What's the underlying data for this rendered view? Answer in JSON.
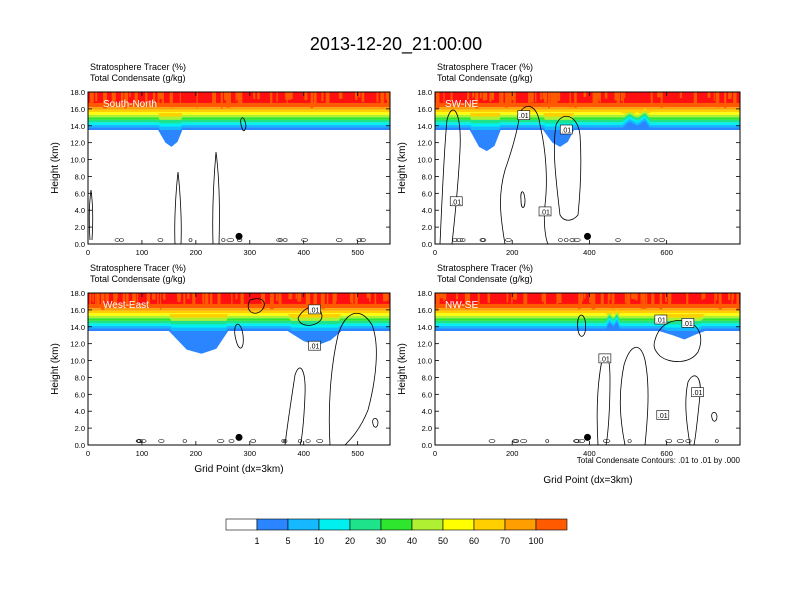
{
  "title": "2013-12-20_21:00:00",
  "colors": {
    "levels": [
      "#ffffff",
      "#2a85ff",
      "#16b8ff",
      "#00f0f0",
      "#1ee38a",
      "#2ee62e",
      "#b0f032",
      "#ffff00",
      "#ffcf00",
      "#ff9e00",
      "#ff5a00",
      "#ff0f0f"
    ],
    "contour": "#000000"
  },
  "colorbar": {
    "labels": [
      "1",
      "5",
      "10",
      "20",
      "30",
      "40",
      "50",
      "60",
      "70",
      "100"
    ]
  },
  "chart_data": [
    {
      "type": "heatmap",
      "panel_label": "South-North",
      "header_line1": "Stratosphere Tracer   (%)",
      "header_line2": "Total Condensate   (g/kg)",
      "ylabel": "Height (km)",
      "xlabel": "",
      "xlim": [
        0,
        560
      ],
      "ylim": [
        0,
        18
      ],
      "x_ticks": [
        0,
        100,
        200,
        300,
        400,
        500
      ],
      "y_ticks": [
        "0.0",
        "2.0",
        "4.0",
        "6.0",
        "8.0",
        "10.0",
        "12.0",
        "14.0",
        "16.0",
        "18.0"
      ],
      "marker_x": 280,
      "contour_labels": []
    },
    {
      "type": "heatmap",
      "panel_label": "SW-NE",
      "header_line1": "Stratosphere Tracer   (%)",
      "header_line2": "Total Condensate   (g/kg)",
      "ylabel": "Height (km)",
      "xlabel": "",
      "xlim": [
        0,
        790
      ],
      "ylim": [
        0,
        18
      ],
      "x_ticks": [
        0,
        200,
        400,
        600
      ],
      "y_ticks": [
        "0.0",
        "2.0",
        "4.0",
        "6.0",
        "8.0",
        "10.0",
        "12.0",
        "14.0",
        "16.0",
        "18.0"
      ],
      "marker_x": 395,
      "contour_labels": [
        {
          "text": ".01",
          "x": 55,
          "y": 5.0
        },
        {
          "text": ".01",
          "x": 230,
          "y": 15.2
        },
        {
          "text": ".01",
          "x": 340,
          "y": 13.5
        },
        {
          "text": ".01",
          "x": 285,
          "y": 3.8
        }
      ]
    },
    {
      "type": "heatmap",
      "panel_label": "West-East",
      "header_line1": "Stratosphere Tracer   (%)",
      "header_line2": "Total Condensate   (g/kg)",
      "ylabel": "Height (km)",
      "xlabel": "Grid Point (dx=3km)",
      "xlim": [
        0,
        560
      ],
      "ylim": [
        0,
        18
      ],
      "x_ticks": [
        0,
        100,
        200,
        300,
        400,
        500
      ],
      "y_ticks": [
        "0.0",
        "2.0",
        "4.0",
        "6.0",
        "8.0",
        "10.0",
        "12.0",
        "14.0",
        "16.0",
        "18.0"
      ],
      "marker_x": 280,
      "contour_labels": [
        {
          "text": ".01",
          "x": 420,
          "y": 16.0
        },
        {
          "text": ".01",
          "x": 420,
          "y": 11.7
        }
      ]
    },
    {
      "type": "heatmap",
      "panel_label": "NW-SE",
      "header_line1": "Stratosphere Tracer   (%)",
      "header_line2": "Total Condensate   (g/kg)",
      "ylabel": "Height (km)",
      "xlabel": "Grid Point (dx=3km)",
      "xlim": [
        0,
        790
      ],
      "ylim": [
        0,
        18
      ],
      "x_ticks": [
        0,
        200,
        400,
        600
      ],
      "y_ticks": [
        "0.0",
        "2.0",
        "4.0",
        "6.0",
        "8.0",
        "10.0",
        "12.0",
        "14.0",
        "16.0",
        "18.0"
      ],
      "marker_x": 395,
      "footer_note": "Total Condensate Contours: .01 to .01 by .000",
      "contour_labels": [
        {
          "text": ".01",
          "x": 585,
          "y": 14.8
        },
        {
          "text": ".01",
          "x": 655,
          "y": 14.4
        },
        {
          "text": ".01",
          "x": 440,
          "y": 10.2
        },
        {
          "text": ".01",
          "x": 680,
          "y": 6.2
        },
        {
          "text": ".01",
          "x": 590,
          "y": 3.5
        }
      ]
    }
  ]
}
